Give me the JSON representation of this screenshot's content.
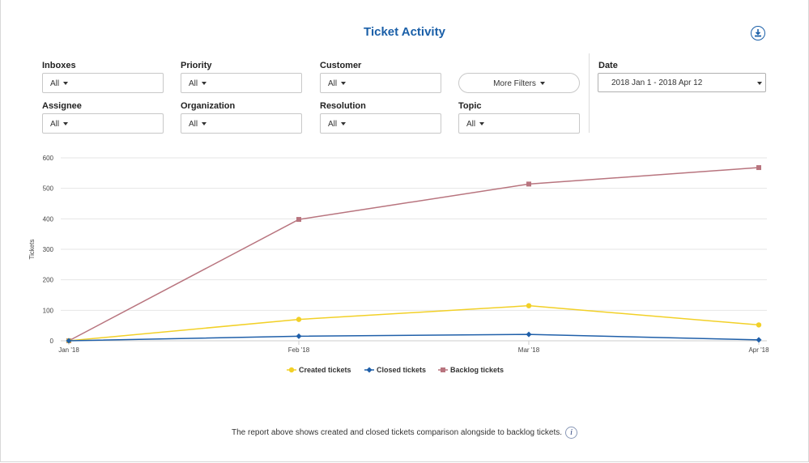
{
  "title": "Ticket Activity",
  "download_icon": "download-icon",
  "filters": {
    "inboxes": {
      "label": "Inboxes",
      "value": "All"
    },
    "priority": {
      "label": "Priority",
      "value": "All"
    },
    "customer": {
      "label": "Customer",
      "value": "All"
    },
    "assignee": {
      "label": "Assignee",
      "value": "All"
    },
    "organization": {
      "label": "Organization",
      "value": "All"
    },
    "resolution": {
      "label": "Resolution",
      "value": "All"
    },
    "topic": {
      "label": "Topic",
      "value": "All"
    },
    "more_filters": "More Filters",
    "date": {
      "label": "Date",
      "value": "2018 Jan 1 - 2018 Apr 12"
    }
  },
  "chart_data": {
    "type": "line",
    "title": "",
    "xlabel": "",
    "ylabel": "Tickets",
    "categories": [
      "Jan '18",
      "Feb '18",
      "Mar '18",
      "Apr '18"
    ],
    "ylim": [
      0,
      600
    ],
    "yticks": [
      0,
      100,
      200,
      300,
      400,
      500,
      600
    ],
    "grid": true,
    "legend_position": "bottom",
    "series": [
      {
        "name": "Created tickets",
        "values": [
          0,
          70,
          115,
          52
        ],
        "color": "#f2d027",
        "marker": "circle"
      },
      {
        "name": "Closed tickets",
        "values": [
          0,
          15,
          21,
          3
        ],
        "color": "#1f5fa9",
        "marker": "diamond"
      },
      {
        "name": "Backlog tickets",
        "values": [
          0,
          398,
          514,
          568
        ],
        "color": "#b8747e",
        "marker": "square"
      }
    ]
  },
  "footnote": "The report above shows created and closed tickets comparison alongside to backlog tickets.",
  "info_icon": "i"
}
